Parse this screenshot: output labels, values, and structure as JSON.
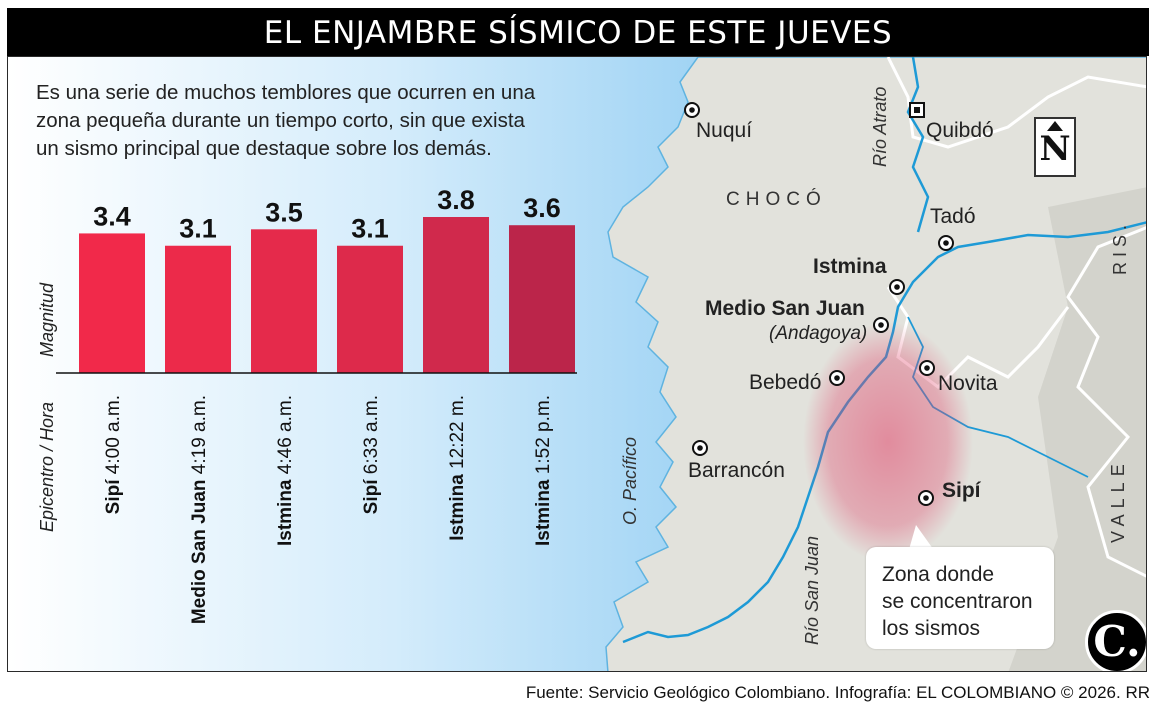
{
  "title": "EL ENJAMBRE SÍSMICO DE ESTE JUEVES",
  "intro_lines": [
    "Es una serie de muchos temblores que ocurren en una",
    "zona pequeña durante un tiempo corto, sin que exista",
    "un sismo principal que destaque sobre los demás."
  ],
  "chart_data": {
    "type": "bar",
    "ylabel": "Magnitud",
    "xlabel": "Epicentro / Hora",
    "values": [
      3.4,
      3.1,
      3.5,
      3.1,
      3.8,
      3.6
    ],
    "value_labels": [
      "3.4",
      "3.1",
      "3.5",
      "3.1",
      "3.8",
      "3.6"
    ],
    "categories": [
      {
        "place": "Sipí",
        "time": "4:00 a.m."
      },
      {
        "place": "Medio San Juan",
        "time": "4:19 a.m."
      },
      {
        "place": "Istmina",
        "time": "4:46 a.m."
      },
      {
        "place": "Sipí",
        "time": "6:33 a.m."
      },
      {
        "place": "Istmina",
        "time": "12:22 m."
      },
      {
        "place": "Istmina",
        "time": "1:52 p.m."
      }
    ],
    "colors": [
      "#f1294a",
      "#ec2a4a",
      "#e52a4b",
      "#dd2a4b",
      "#d0294c",
      "#bb254a"
    ]
  },
  "map": {
    "cities": {
      "nuqui": "Nuquí",
      "quibdo": "Quibdó",
      "tado": "Tadó",
      "istmina": "Istmina",
      "medio_san_juan": "Medio San Juan",
      "andagoya": "(Andagoya)",
      "bebedo": "Bebedó",
      "novita": "Novita",
      "barrancon": "Barrancón",
      "sipi": "Sipí"
    },
    "regions": {
      "choco": "CHOCÓ",
      "risaralda": "RIS.",
      "valle": "VALLE"
    },
    "water": {
      "rio_atrato": "Río Atrato",
      "rio_san_juan": "Río San Juan",
      "pacifico": "O. Pacífico"
    },
    "north": "N",
    "callout_lines": [
      "Zona donde",
      "se concentraron",
      "los sismos"
    ]
  },
  "logo": "C.",
  "source": "Fuente: Servicio Geológico Colombiano. Infografía: EL COLOMBIANO © 2026. RR",
  "colors": {
    "sea": "#a8d7f5",
    "land": "#e2e2dc",
    "river": "#1e9ad6",
    "quake_zone": "#e0456a"
  }
}
